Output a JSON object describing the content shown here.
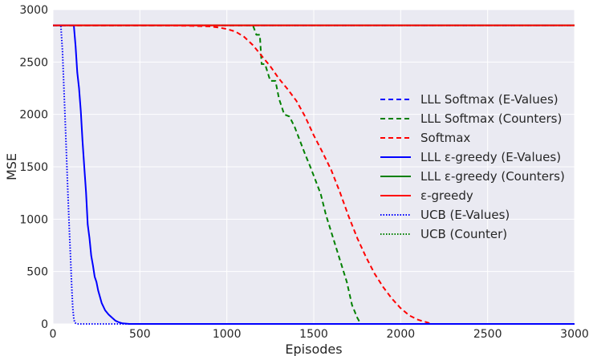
{
  "chart_data": {
    "type": "line",
    "xlabel": "Episodes",
    "ylabel": "MSE",
    "xlim": [
      0,
      3000
    ],
    "ylim": [
      0,
      3000
    ],
    "xticks": [
      0,
      500,
      1000,
      1500,
      2000,
      2500,
      3000
    ],
    "yticks": [
      0,
      500,
      1000,
      1500,
      2000,
      2500,
      3000
    ],
    "grid": true,
    "background": "#EAEAF2",
    "legend_position": "center-right",
    "series": [
      {
        "name": "LLL Softmax (E-Values)",
        "color": "#0000FF",
        "style": "dashed",
        "x": [
          0,
          3000
        ],
        "y": [
          2850,
          2850
        ]
      },
      {
        "name": "LLL Softmax (Counters)",
        "color": "#008000",
        "style": "dashed",
        "x": [
          0,
          1150,
          1170,
          1190,
          1200,
          1220,
          1250,
          1280,
          1300,
          1330,
          1360,
          1390,
          1420,
          1450,
          1480,
          1510,
          1540,
          1570,
          1600,
          1630,
          1660,
          1690,
          1720,
          1750,
          1770,
          1800,
          3000
        ],
        "y": [
          2850,
          2850,
          2760,
          2760,
          2480,
          2480,
          2320,
          2320,
          2150,
          2000,
          1980,
          1880,
          1750,
          1620,
          1500,
          1370,
          1240,
          1040,
          880,
          720,
          560,
          400,
          180,
          60,
          0,
          0,
          0
        ]
      },
      {
        "name": "Softmax",
        "color": "#FF0000",
        "style": "dashed",
        "x": [
          0,
          600,
          800,
          900,
          950,
          1000,
          1050,
          1100,
          1150,
          1200,
          1250,
          1300,
          1350,
          1400,
          1450,
          1500,
          1550,
          1600,
          1650,
          1700,
          1750,
          1800,
          1850,
          1900,
          1950,
          2000,
          2050,
          2100,
          2150,
          2180,
          3000
        ],
        "y": [
          2850,
          2850,
          2845,
          2840,
          2830,
          2815,
          2790,
          2740,
          2660,
          2560,
          2460,
          2340,
          2240,
          2130,
          1980,
          1800,
          1640,
          1470,
          1260,
          1030,
          820,
          640,
          480,
          350,
          240,
          150,
          80,
          40,
          15,
          0,
          0
        ]
      },
      {
        "name": "LLL ε-greedy (E-Values)",
        "color": "#0000FF",
        "style": "solid",
        "x": [
          0,
          120,
          130,
          140,
          150,
          160,
          170,
          180,
          190,
          200,
          210,
          220,
          230,
          240,
          250,
          260,
          280,
          300,
          320,
          340,
          360,
          380,
          400,
          440,
          500,
          3000
        ],
        "y": [
          2850,
          2850,
          2650,
          2400,
          2250,
          2030,
          1750,
          1500,
          1260,
          950,
          820,
          650,
          560,
          450,
          400,
          320,
          200,
          130,
          90,
          60,
          30,
          15,
          5,
          0,
          0,
          0
        ]
      },
      {
        "name": "LLL ε-greedy (Counters)",
        "color": "#008000",
        "style": "solid",
        "x": [
          0,
          3000
        ],
        "y": [
          2850,
          2850
        ]
      },
      {
        "name": "ε-greedy",
        "color": "#FF0000",
        "style": "solid",
        "x": [
          0,
          3000
        ],
        "y": [
          2850,
          2850
        ]
      },
      {
        "name": "UCB (E-Values)",
        "color": "#0000FF",
        "style": "dotted",
        "x": [
          0,
          45,
          55,
          62,
          70,
          78,
          86,
          94,
          102,
          108,
          114,
          120,
          126,
          140,
          3000
        ],
        "y": [
          2850,
          2850,
          2600,
          2300,
          1950,
          1600,
          1250,
          900,
          600,
          350,
          150,
          50,
          10,
          0,
          0
        ]
      },
      {
        "name": "UCB (Counter)",
        "color": "#008000",
        "style": "dotted",
        "x": [
          0,
          3000
        ],
        "y": [
          2850,
          2850
        ]
      }
    ]
  }
}
